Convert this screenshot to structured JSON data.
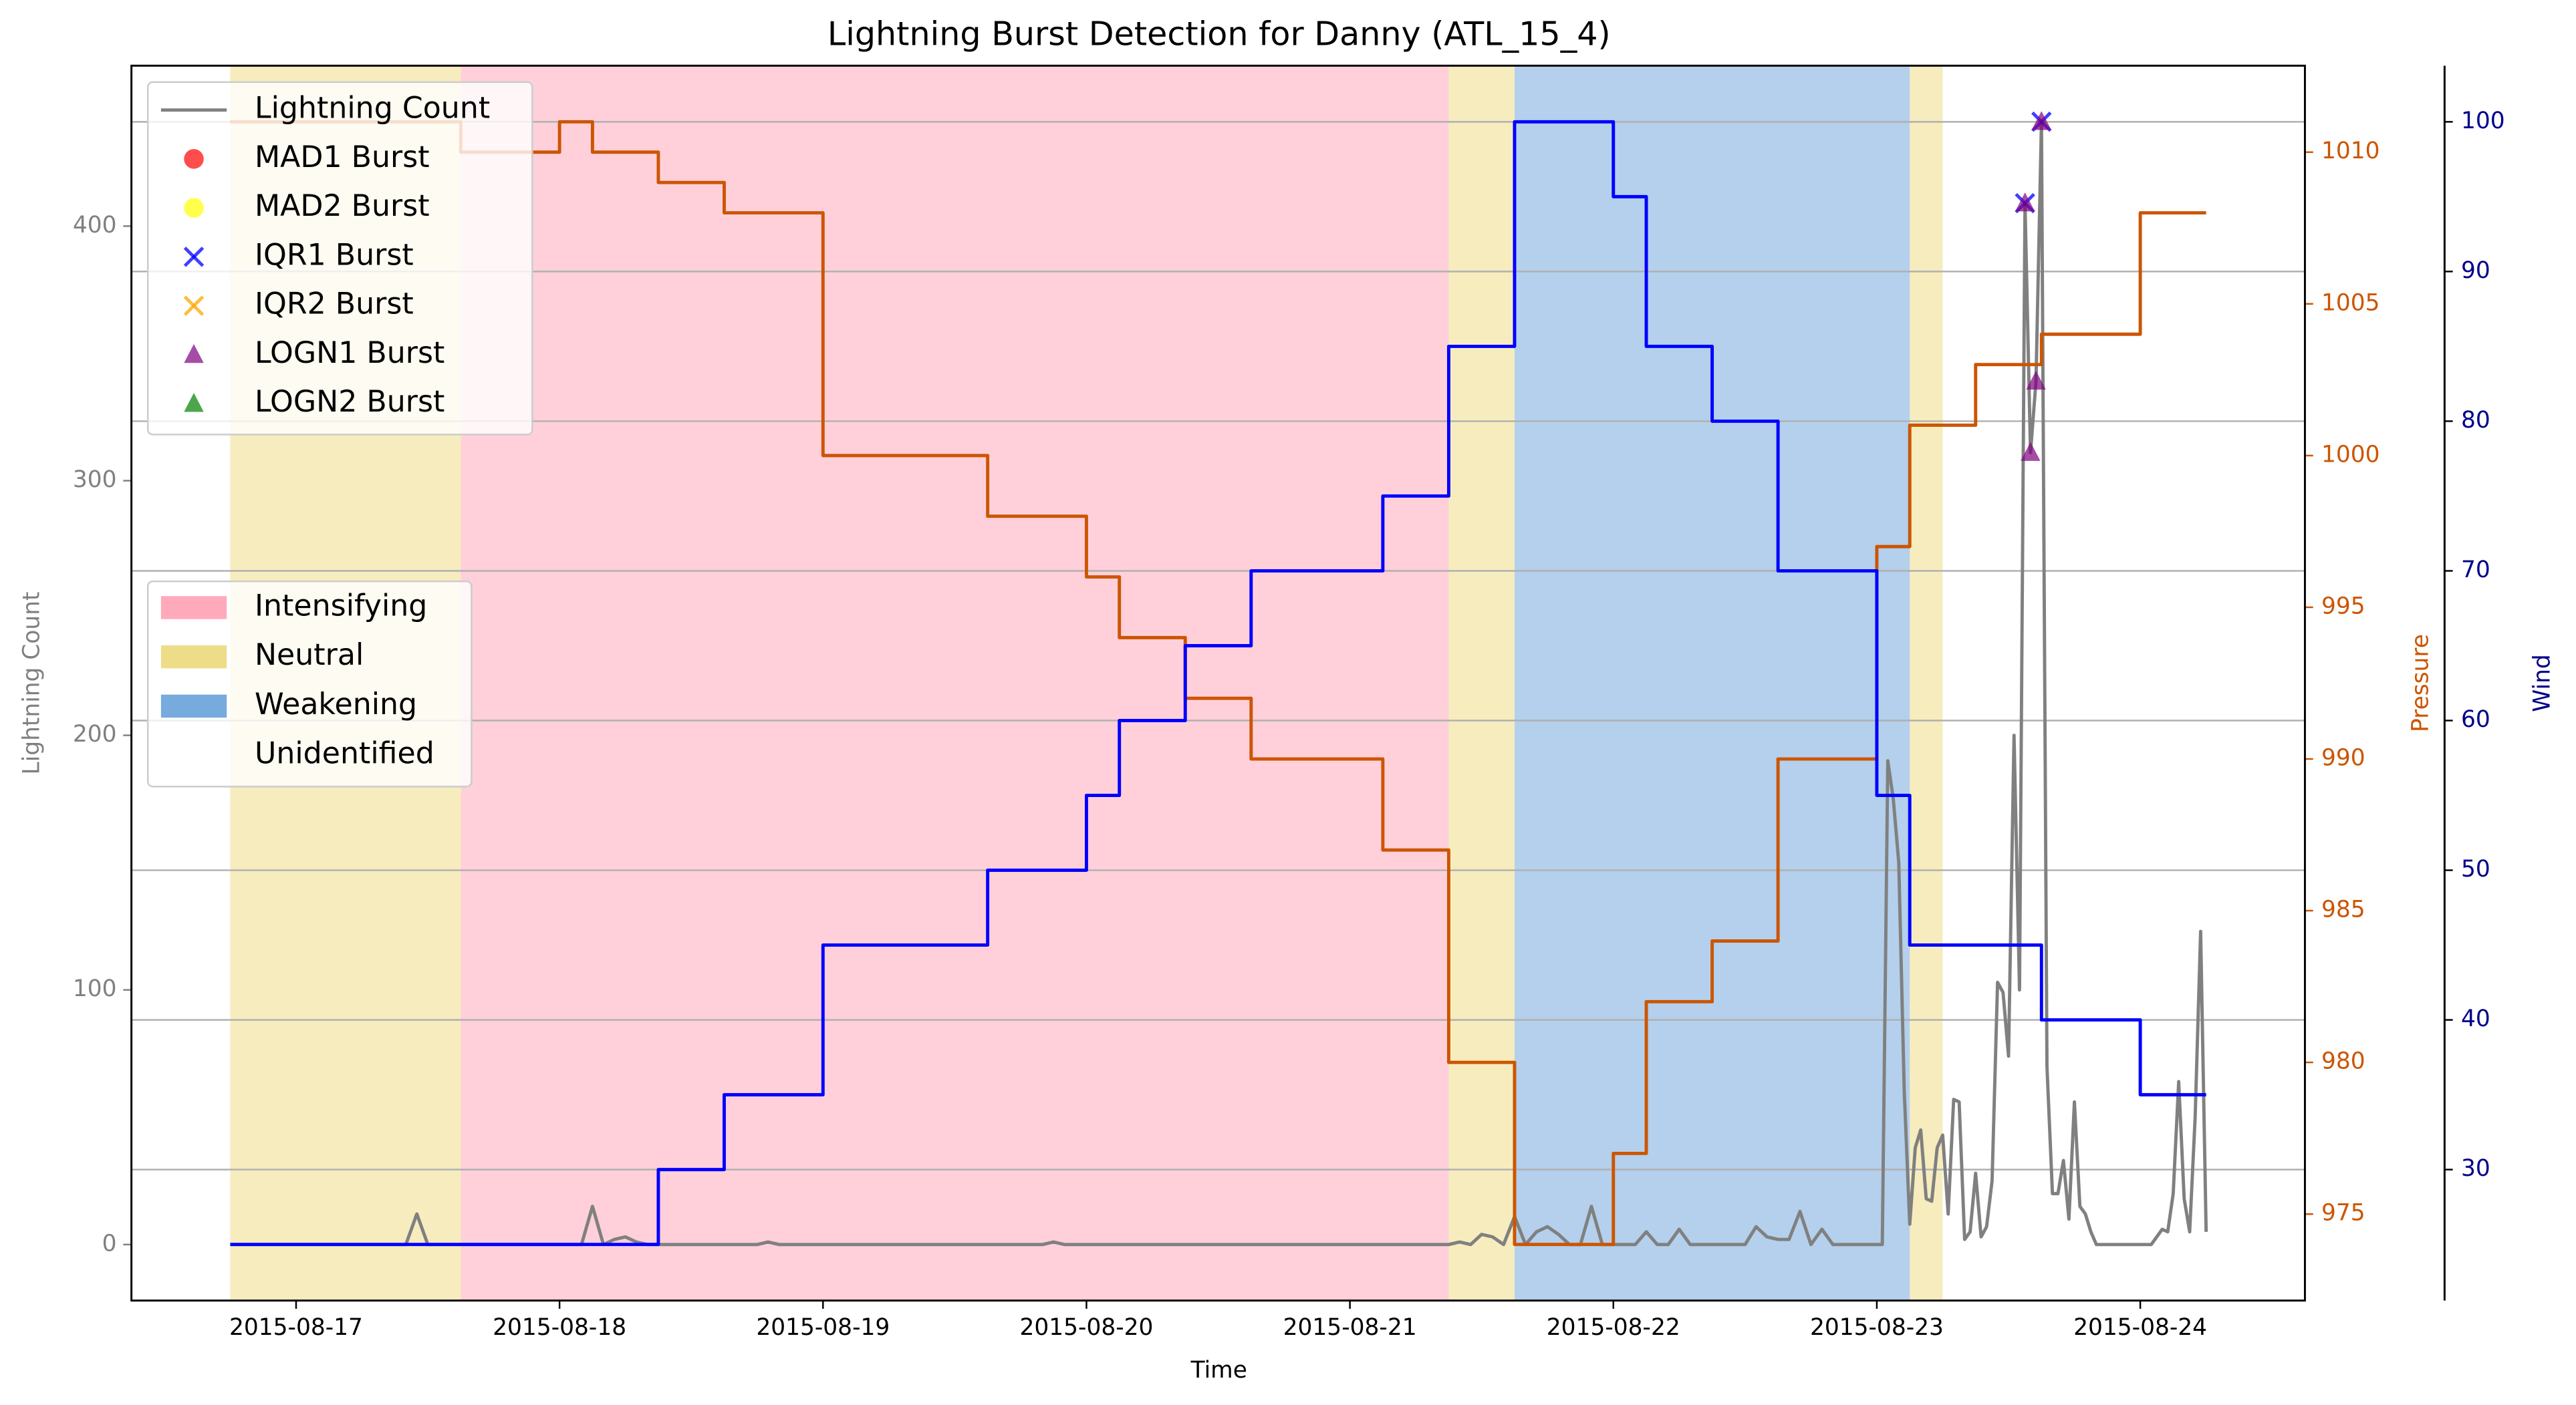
{
  "chart_data": {
    "type": "line",
    "title": "Lightning Burst Detection for Danny (ATL_15_4)",
    "xlabel": "Time",
    "ylabel": "Lightning Count",
    "y2label": "Pressure",
    "y3label": "Wind",
    "ycolor": "#808080",
    "y2color": "#cc5500",
    "y3color": "#00008b",
    "xlim": [
      "2015-08-16 09:00",
      "2015-08-24 15:00"
    ],
    "xticks": [
      "2015-08-17",
      "2015-08-18",
      "2015-08-19",
      "2015-08-20",
      "2015-08-21",
      "2015-08-22",
      "2015-08-23",
      "2015-08-24"
    ],
    "ylim": [
      -22,
      463
    ],
    "yticks": [
      0,
      100,
      200,
      300,
      400
    ],
    "y2lim": [
      972.15,
      1012.85
    ],
    "y2ticks": [
      975,
      980,
      985,
      990,
      995,
      1000,
      1005,
      1010
    ],
    "y3lim": [
      21.25,
      103.75
    ],
    "y3ticks": [
      30,
      40,
      50,
      60,
      70,
      80,
      90,
      100
    ],
    "grid": true,
    "grid_axis": "y3",
    "legend_loc": "upper left",
    "region_legend_loc": "center left",
    "regions": [
      {
        "name": "Intensifying",
        "color": "#ffaabb",
        "spans": [
          [
            "2015-08-17 15:00",
            "2015-08-21 09:00"
          ]
        ]
      },
      {
        "name": "Neutral",
        "color": "#eedd88",
        "spans": [
          [
            "2015-08-16 18:00",
            "2015-08-17 15:00"
          ],
          [
            "2015-08-21 09:00",
            "2015-08-21 15:00"
          ],
          [
            "2015-08-23 03:00",
            "2015-08-23 06:00"
          ]
        ]
      },
      {
        "name": "Weakening",
        "color": "#77aadd",
        "spans": [
          [
            "2015-08-21 15:00",
            "2015-08-23 03:00"
          ]
        ]
      },
      {
        "name": "Unidentified",
        "color": "#ffffff",
        "spans": [
          [
            "2015-08-23 06:00",
            "2015-08-24 06:00"
          ]
        ]
      }
    ],
    "series": [
      {
        "name": "Lightning Count",
        "color": "#808080",
        "axis": "y",
        "marker": "line",
        "x": [
          "2015-08-16 18:00",
          "2015-08-17 10:00",
          "2015-08-17 11:00",
          "2015-08-17 12:00",
          "2015-08-18 02:00",
          "2015-08-18 03:00",
          "2015-08-18 04:00",
          "2015-08-18 05:00",
          "2015-08-18 06:00",
          "2015-08-18 07:00",
          "2015-08-18 08:00",
          "2015-08-18 18:00",
          "2015-08-18 19:00",
          "2015-08-18 20:00",
          "2015-08-19 20:00",
          "2015-08-19 21:00",
          "2015-08-19 22:00",
          "2015-08-21 09:00",
          "2015-08-21 10:00",
          "2015-08-21 11:00",
          "2015-08-21 12:00",
          "2015-08-21 13:00",
          "2015-08-21 14:00",
          "2015-08-21 15:00",
          "2015-08-21 16:00",
          "2015-08-21 17:00",
          "2015-08-21 18:00",
          "2015-08-21 19:00",
          "2015-08-21 20:00",
          "2015-08-21 21:00",
          "2015-08-21 22:00",
          "2015-08-21 23:00",
          "2015-08-22 02:00",
          "2015-08-22 03:00",
          "2015-08-22 04:00",
          "2015-08-22 05:00",
          "2015-08-22 06:00",
          "2015-08-22 07:00",
          "2015-08-22 12:00",
          "2015-08-22 13:00",
          "2015-08-22 14:00",
          "2015-08-22 15:00",
          "2015-08-22 16:00",
          "2015-08-22 17:00",
          "2015-08-22 18:00",
          "2015-08-22 19:00",
          "2015-08-22 20:00",
          "2015-08-23 00:30",
          "2015-08-23 01:00",
          "2015-08-23 01:30",
          "2015-08-23 02:00",
          "2015-08-23 02:30",
          "2015-08-23 03:00",
          "2015-08-23 03:30",
          "2015-08-23 04:00",
          "2015-08-23 04:30",
          "2015-08-23 05:00",
          "2015-08-23 05:30",
          "2015-08-23 06:00",
          "2015-08-23 06:30",
          "2015-08-23 07:00",
          "2015-08-23 07:30",
          "2015-08-23 08:00",
          "2015-08-23 08:30",
          "2015-08-23 09:00",
          "2015-08-23 09:30",
          "2015-08-23 10:00",
          "2015-08-23 10:30",
          "2015-08-23 11:00",
          "2015-08-23 11:30",
          "2015-08-23 12:00",
          "2015-08-23 12:30",
          "2015-08-23 13:00",
          "2015-08-23 13:30",
          "2015-08-23 14:00",
          "2015-08-23 14:30",
          "2015-08-23 15:00",
          "2015-08-23 15:30",
          "2015-08-23 16:00",
          "2015-08-23 16:30",
          "2015-08-23 17:00",
          "2015-08-23 17:30",
          "2015-08-23 18:00",
          "2015-08-23 18:30",
          "2015-08-23 19:00",
          "2015-08-23 19:30",
          "2015-08-23 20:00",
          "2015-08-24 01:00",
          "2015-08-24 02:00",
          "2015-08-24 02:30",
          "2015-08-24 03:00",
          "2015-08-24 03:30",
          "2015-08-24 04:00",
          "2015-08-24 04:30",
          "2015-08-24 05:00",
          "2015-08-24 05:30",
          "2015-08-24 06:00"
        ],
        "values": [
          0,
          0,
          12,
          0,
          0,
          15,
          0,
          2,
          3,
          1,
          0,
          0,
          1,
          0,
          0,
          1,
          0,
          0,
          1,
          0,
          4,
          3,
          0,
          11,
          0,
          5,
          7,
          4,
          0,
          0,
          15,
          0,
          0,
          5,
          0,
          0,
          6,
          0,
          0,
          7,
          3,
          2,
          2,
          13,
          0,
          6,
          0,
          0,
          190,
          175,
          150,
          60,
          8,
          38,
          45,
          18,
          17,
          38,
          43,
          12,
          57,
          56,
          2,
          5,
          28,
          3,
          7,
          25,
          103,
          99,
          74,
          200,
          100,
          409,
          311,
          339,
          441,
          70,
          20,
          20,
          33,
          10,
          56,
          15,
          12,
          5,
          0,
          0,
          6,
          5,
          20,
          64,
          18,
          5,
          50,
          123,
          5
        ]
      },
      {
        "name": "MAD1 Burst",
        "color": "#ff0000",
        "axis": "y",
        "marker": "o",
        "x": [],
        "values": []
      },
      {
        "name": "MAD2 Burst",
        "color": "#ffff00",
        "axis": "y",
        "marker": "o",
        "x": [],
        "values": []
      },
      {
        "name": "IQR1 Burst",
        "color": "#0000ff",
        "axis": "y",
        "marker": "x",
        "x": [
          "2015-08-23 13:30",
          "2015-08-23 15:00"
        ],
        "values": [
          409,
          441
        ]
      },
      {
        "name": "IQR2 Burst",
        "color": "#ffa500",
        "axis": "y",
        "marker": "x",
        "x": [],
        "values": []
      },
      {
        "name": "LOGN1 Burst",
        "color": "#800080",
        "axis": "y",
        "marker": "^",
        "x": [
          "2015-08-23 13:30",
          "2015-08-23 14:00",
          "2015-08-23 14:30",
          "2015-08-23 15:00"
        ],
        "values": [
          409,
          311,
          339,
          441
        ]
      },
      {
        "name": "LOGN2 Burst",
        "color": "#008000",
        "axis": "y",
        "marker": "^",
        "x": [],
        "values": []
      },
      {
        "color": "#cc5500",
        "axis": "y2",
        "marker": "step",
        "x": [
          "2015-08-16 18:00",
          "2015-08-17 15:00",
          "2015-08-18 00:00",
          "2015-08-18 03:00",
          "2015-08-18 09:00",
          "2015-08-18 15:00",
          "2015-08-19 00:00",
          "2015-08-19 15:00",
          "2015-08-20 00:00",
          "2015-08-20 03:00",
          "2015-08-20 09:00",
          "2015-08-20 15:00",
          "2015-08-21 03:00",
          "2015-08-21 09:00",
          "2015-08-21 15:00",
          "2015-08-22 00:00",
          "2015-08-22 03:00",
          "2015-08-22 09:00",
          "2015-08-22 15:00",
          "2015-08-23 00:00",
          "2015-08-23 03:00",
          "2015-08-23 09:00",
          "2015-08-23 15:00",
          "2015-08-24 00:00",
          "2015-08-24 06:00"
        ],
        "values": [
          1011,
          1010,
          1011,
          1010,
          1009,
          1008,
          1000,
          998,
          996,
          994,
          992,
          990,
          987,
          980,
          974,
          977,
          982,
          984,
          990,
          997,
          1001,
          1003,
          1004,
          1008,
          1008
        ]
      },
      {
        "color": "#0000ff",
        "axis": "y3",
        "marker": "step",
        "x": [
          "2015-08-16 18:00",
          "2015-08-18 09:00",
          "2015-08-18 15:00",
          "2015-08-19 00:00",
          "2015-08-19 15:00",
          "2015-08-20 00:00",
          "2015-08-20 03:00",
          "2015-08-20 09:00",
          "2015-08-20 15:00",
          "2015-08-21 03:00",
          "2015-08-21 09:00",
          "2015-08-21 15:00",
          "2015-08-22 00:00",
          "2015-08-22 03:00",
          "2015-08-22 09:00",
          "2015-08-22 15:00",
          "2015-08-23 00:00",
          "2015-08-23 03:00",
          "2015-08-23 15:00",
          "2015-08-24 00:00",
          "2015-08-24 06:00"
        ],
        "values": [
          25,
          30,
          35,
          45,
          50,
          55,
          60,
          65,
          70,
          75,
          85,
          100,
          95,
          85,
          80,
          70,
          55,
          45,
          40,
          35,
          35
        ]
      }
    ]
  }
}
